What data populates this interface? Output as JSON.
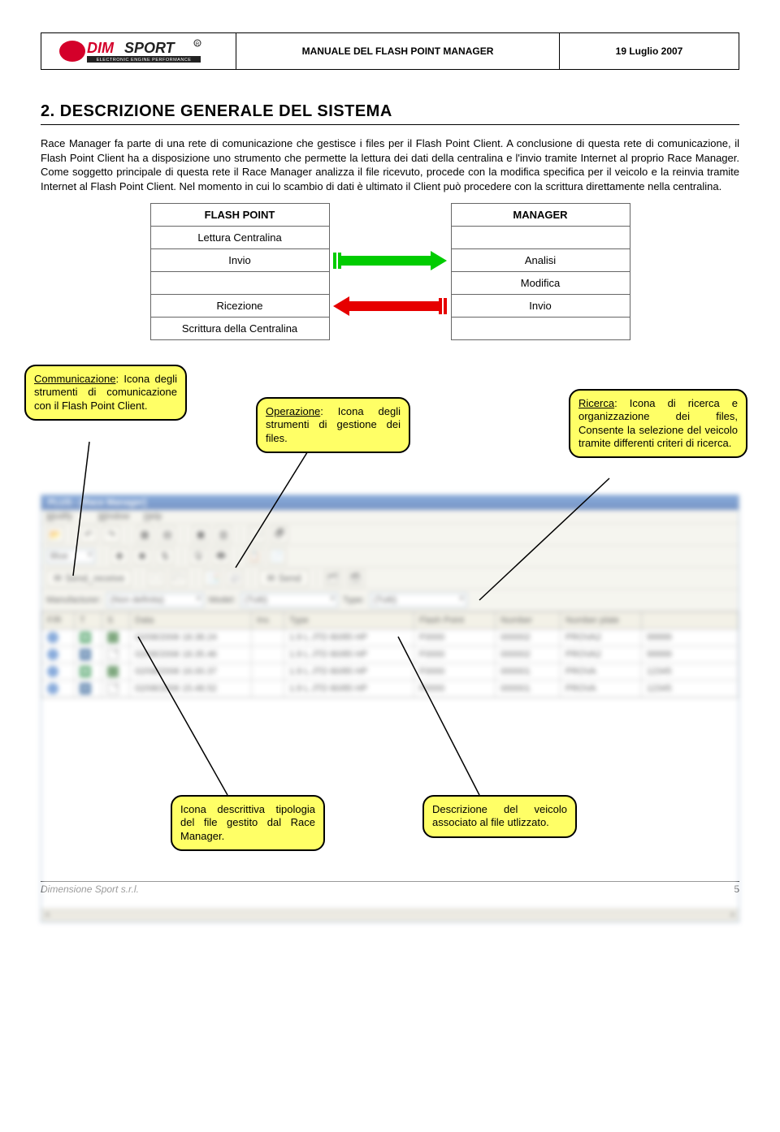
{
  "header": {
    "title": "MANUALE DEL FLASH POINT MANAGER",
    "date": "19 Luglio 2007",
    "logo_main": "DIMSPORT",
    "logo_sub": "ELECTRONIC ENGINE PERFORMANCE",
    "logo_colors": {
      "red": "#d4002a",
      "dark": "#222222"
    }
  },
  "section": {
    "number": "2.",
    "title": "DESCRIZIONE GENERALE DEL SISTEMA",
    "paragraph": "Race Manager fa parte di una rete di comunicazione che gestisce i files per il Flash Point Client. A conclusione di questa rete di comunicazione, il Flash Point Client ha a disposizione uno strumento che permette la lettura dei dati della centralina e l'invio tramite Internet al proprio Race Manager. Come soggetto principale di questa rete il Race Manager analizza il file ricevuto, procede con la modifica specifica per il veicolo e la reinvia tramite Internet al Flash Point Client. Nel momento in cui lo scambio di dati è ultimato il Client può procedere con la scrittura direttamente nella centralina."
  },
  "flow": {
    "left_header": "FLASH POINT",
    "right_header": "MANAGER",
    "rows": [
      {
        "left": "Lettura Centralina",
        "right": ""
      },
      {
        "left": "Invio",
        "right": "Analisi",
        "arrow": "green"
      },
      {
        "left": "",
        "right": "Modifica"
      },
      {
        "left": "Ricezione",
        "right": "Invio",
        "arrow": "red"
      },
      {
        "left": "Scrittura della Centralina",
        "right": ""
      }
    ],
    "colors": {
      "green": "#00cc00",
      "red": "#e60000"
    }
  },
  "callouts": {
    "comm": {
      "title": "Communicazione",
      "body": ": Icona degli strumenti di comunicazione con il Flash Point Client."
    },
    "oper": {
      "title": "Operazione",
      "body": ": Icona degli strumenti di gestione dei files."
    },
    "ricerca": {
      "title": "Ricerca",
      "body": ": Icona di ricerca e organizzazione dei files, Consente la selezione del veicolo tramite differenti criteri di ricerca."
    },
    "icona": {
      "body": "Icona descrittiva tipologia del file gestito dal Race Manager."
    },
    "descr": {
      "body": "Descrizione del veicolo associato al file utlizzato."
    }
  },
  "app": {
    "title": "PLUS - [Race Manager]",
    "menu": [
      "Modify",
      "Window",
      "Help"
    ],
    "send_receive": "Send_receive",
    "send": "Send",
    "filters": {
      "manufacturer_label": "Manufacturer:",
      "manufacturer_value": "(Non definita)",
      "model_label": "Model:",
      "model_value": "(Tutti)",
      "type_label": "Type:",
      "type_value": "(Tutti)"
    },
    "grid_headers": [
      "F/R",
      "T",
      "S",
      "Data",
      "Inv.",
      "Type",
      "Flash Point",
      "Number",
      "Number plate",
      ""
    ],
    "grid_rows": [
      {
        "t": "M",
        "data": "02/08/2006 18.38.24",
        "type": "1.9 L JTD 80/85 HP",
        "fp": "F0000",
        "num": "000002",
        "plate": "PROVA2",
        "extra": "99999"
      },
      {
        "t": "O",
        "data": "02/08/2006 18.35.46",
        "type": "1.9 L JTD 80/85 HP",
        "fp": "F0000",
        "num": "000002",
        "plate": "PROVA2",
        "extra": "99999"
      },
      {
        "t": "M",
        "data": "02/08/2006 16.00.37",
        "type": "1.9 L JTD 80/85 HP",
        "fp": "F0000",
        "num": "000001",
        "plate": "PROVA",
        "extra": "12345"
      },
      {
        "t": "O",
        "data": "02/08/2006 15.48.52",
        "type": "1.9 L JTD 80/85 HP",
        "fp": "F0000",
        "num": "000001",
        "plate": "PROVA",
        "extra": "12345"
      }
    ]
  },
  "footer": {
    "left": "Dimensione Sport s.r.l.",
    "page": "5"
  }
}
